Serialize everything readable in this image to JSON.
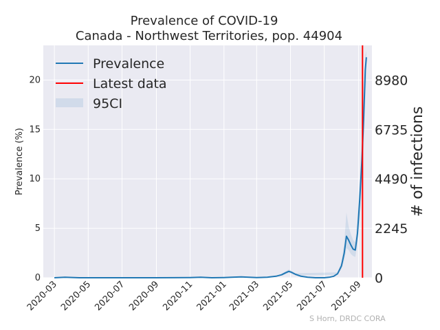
{
  "chart_data": {
    "type": "line",
    "title_line1": "Prevalence of COVID-19",
    "title_line2": "Canada - Northwest Territories, pop. 44904",
    "ylabel": "Prevalence (%)",
    "ylabel_right": "# of infections",
    "ylim": [
      0,
      23.5
    ],
    "y_ticks": [
      0,
      5,
      10,
      15,
      20
    ],
    "y_tick_labels": [
      "0",
      "5",
      "10",
      "15",
      "20"
    ],
    "right_ticks": [
      0,
      2245,
      4490,
      6735,
      8980
    ],
    "right_tick_labels": [
      "0",
      "2245",
      "4490",
      "6735",
      "8980"
    ],
    "population": 44904,
    "xlim": [
      "2020-02-10",
      "2021-09-25"
    ],
    "x_ticks": [
      "2020-03-01",
      "2020-05-01",
      "2020-07-01",
      "2020-09-01",
      "2020-11-01",
      "2021-01-01",
      "2021-03-01",
      "2021-05-01",
      "2021-07-01",
      "2021-09-01"
    ],
    "x_tick_labels": [
      "2020-03",
      "2020-05",
      "2020-07",
      "2020-09",
      "2020-11",
      "2021-01",
      "2021-03",
      "2021-05",
      "2021-07",
      "2021-09"
    ],
    "legend": [
      "Prevalence",
      "Latest data",
      "95CI"
    ],
    "legend_position": "top-left",
    "grid": true,
    "latest_data": "2021-09-08",
    "series": [
      {
        "name": "Prevalence",
        "color": "#1f77b4",
        "x": [
          "2020-03-01",
          "2020-03-20",
          "2020-04-15",
          "2020-06-01",
          "2020-09-01",
          "2020-11-01",
          "2020-11-20",
          "2020-12-10",
          "2021-01-01",
          "2021-01-15",
          "2021-02-01",
          "2021-03-01",
          "2021-03-20",
          "2021-04-05",
          "2021-04-15",
          "2021-04-22",
          "2021-04-28",
          "2021-05-03",
          "2021-05-10",
          "2021-05-20",
          "2021-06-01",
          "2021-06-15",
          "2021-07-01",
          "2021-07-10",
          "2021-07-18",
          "2021-07-25",
          "2021-08-01",
          "2021-08-06",
          "2021-08-10",
          "2021-08-14",
          "2021-08-18",
          "2021-08-22",
          "2021-08-26",
          "2021-08-30",
          "2021-09-03",
          "2021-09-07",
          "2021-09-10",
          "2021-09-13",
          "2021-09-15"
        ],
        "values": [
          0.0,
          0.05,
          0.0,
          0.0,
          0.0,
          0.02,
          0.05,
          0.0,
          0.02,
          0.05,
          0.08,
          0.02,
          0.05,
          0.15,
          0.3,
          0.5,
          0.65,
          0.55,
          0.35,
          0.15,
          0.05,
          0.0,
          0.0,
          0.05,
          0.15,
          0.4,
          1.2,
          2.5,
          4.2,
          3.8,
          3.3,
          2.9,
          2.8,
          4.5,
          8.0,
          12.0,
          16.0,
          21.0,
          22.3
        ]
      },
      {
        "name": "95CI",
        "color": "#1f77b4",
        "x": [
          "2021-04-15",
          "2021-04-28",
          "2021-05-10",
          "2021-07-25",
          "2021-08-01",
          "2021-08-06",
          "2021-08-10",
          "2021-08-14",
          "2021-08-18",
          "2021-08-22",
          "2021-08-26",
          "2021-08-30",
          "2021-09-03",
          "2021-09-07",
          "2021-09-10",
          "2021-09-13",
          "2021-09-15"
        ],
        "lower": [
          0.2,
          0.5,
          0.25,
          0.3,
          0.9,
          1.8,
          3.0,
          2.8,
          2.4,
          2.2,
          2.1,
          3.5,
          6.0,
          9.0,
          13.0,
          18.0,
          20.0
        ],
        "upper": [
          0.4,
          0.85,
          0.45,
          0.55,
          1.6,
          3.5,
          6.6,
          5.2,
          4.4,
          3.8,
          3.6,
          6.0,
          10.0,
          14.5,
          18.0,
          22.5,
          23.0
        ]
      }
    ],
    "latest_color": "#ff0000",
    "credit": "S Horn, DRDC CORA"
  }
}
